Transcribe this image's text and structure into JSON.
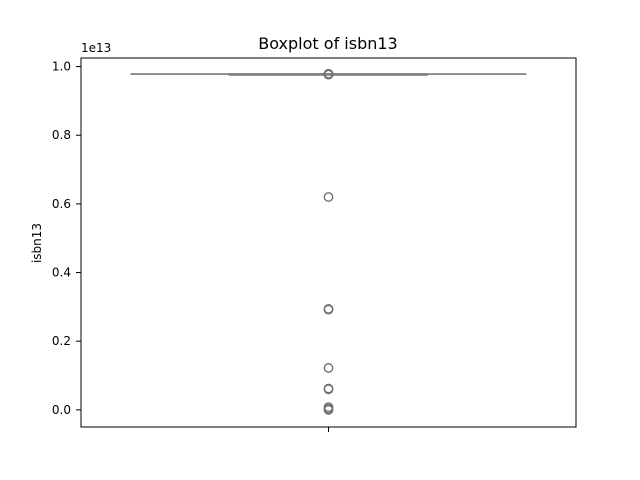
{
  "chart_data": {
    "type": "boxplot",
    "title": "Boxplot of isbn13",
    "xlabel": "",
    "ylabel": "isbn13",
    "y_scale_exponent": "1e13",
    "y_ticks": [
      0.0,
      0.2,
      0.4,
      0.6,
      0.8,
      1.0
    ],
    "y_tick_labels": [
      "0.0",
      "0.2",
      "0.4",
      "0.6",
      "0.8",
      "1.0"
    ],
    "ylim": [
      -0.05,
      1.025
    ],
    "grid": false,
    "box": {
      "q1": 0.978,
      "median": 0.9781,
      "q3": 0.9782,
      "whisker_low": 0.9779,
      "whisker_high": 0.9783
    },
    "outliers": [
      0.979,
      0.9785,
      0.977,
      0.9765,
      0.62,
      0.294,
      0.292,
      0.122,
      0.062,
      0.06,
      0.008,
      0.003,
      0.0
    ],
    "colors": {
      "box_edge": "#808080",
      "outlier_edge": "#707070",
      "axis": "#000000"
    }
  }
}
